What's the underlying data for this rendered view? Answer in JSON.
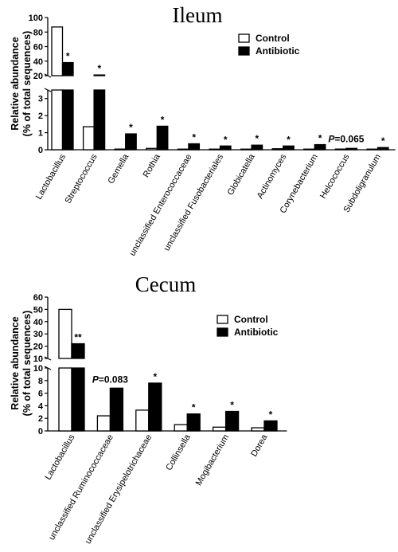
{
  "chart_data": [
    {
      "type": "bar",
      "title": "Ileum",
      "ylabel": [
        "Relative abundance",
        "(% of total sequences)"
      ],
      "yaxis_broken": true,
      "ylim_lower": [
        0,
        3.5
      ],
      "ylim_upper": [
        20,
        100
      ],
      "yticks_lower": [
        "0",
        "1",
        "2",
        "3"
      ],
      "yticks_upper": [
        "20",
        "40",
        "60",
        "80",
        "100"
      ],
      "categories": [
        "Lactobacillus",
        "Streptococcus",
        "Gemella",
        "Rothia",
        "unclassified Enterococcaceae",
        "unclassified Fusobacteriales",
        "Globicatella",
        "Actinomyces",
        "Corynebacterium",
        "Helcococcus",
        "Subdoligranulum"
      ],
      "series": [
        {
          "name": "Control",
          "color": "#ffffff",
          "values": [
            87,
            1.35,
            0.04,
            0.08,
            0.02,
            0.02,
            0.02,
            0.06,
            0.03,
            0.04,
            0.02
          ]
        },
        {
          "name": "Antibiotic",
          "color": "#000000",
          "values": [
            38,
            21,
            0.93,
            1.38,
            0.35,
            0.22,
            0.27,
            0.22,
            0.3,
            0.08,
            0.13
          ]
        }
      ],
      "significance": [
        "*",
        "*",
        "*",
        "*",
        "*",
        "*",
        "*",
        "*",
        "*",
        "",
        "*"
      ],
      "annotations": [
        {
          "category": "Helcococcus",
          "p_italic": "P",
          "text": "=0.065"
        }
      ],
      "legend": {
        "position": "top-right"
      }
    },
    {
      "type": "bar",
      "title": "Cecum",
      "ylabel": [
        "Relative abundance",
        "(% of total sequences)"
      ],
      "yaxis_broken": true,
      "ylim_lower": [
        0,
        10
      ],
      "ylim_upper": [
        10,
        60
      ],
      "yticks_lower": [
        "0",
        "2",
        "4",
        "6",
        "8",
        "10"
      ],
      "yticks_upper": [
        "10",
        "20",
        "30",
        "40",
        "50",
        "60"
      ],
      "categories": [
        "Lactobacillus",
        "unclassified Ruminococcaceae",
        "unclassified Erysipelotrichaceae",
        "Collinsella",
        "Mogibacterium",
        "Dorea"
      ],
      "series": [
        {
          "name": "Control",
          "color": "#ffffff",
          "values": [
            50,
            2.4,
            3.3,
            1.0,
            0.6,
            0.5
          ]
        },
        {
          "name": "Antibiotic",
          "color": "#000000",
          "values": [
            22,
            6.8,
            7.6,
            2.7,
            3.1,
            1.6
          ]
        }
      ],
      "significance": [
        "**",
        "",
        "*",
        "*",
        "*",
        "*"
      ],
      "annotations": [
        {
          "category": "unclassified Ruminococcaceae",
          "p_italic": "P",
          "text": "=0.083"
        }
      ],
      "legend": {
        "position": "top-right"
      }
    }
  ]
}
